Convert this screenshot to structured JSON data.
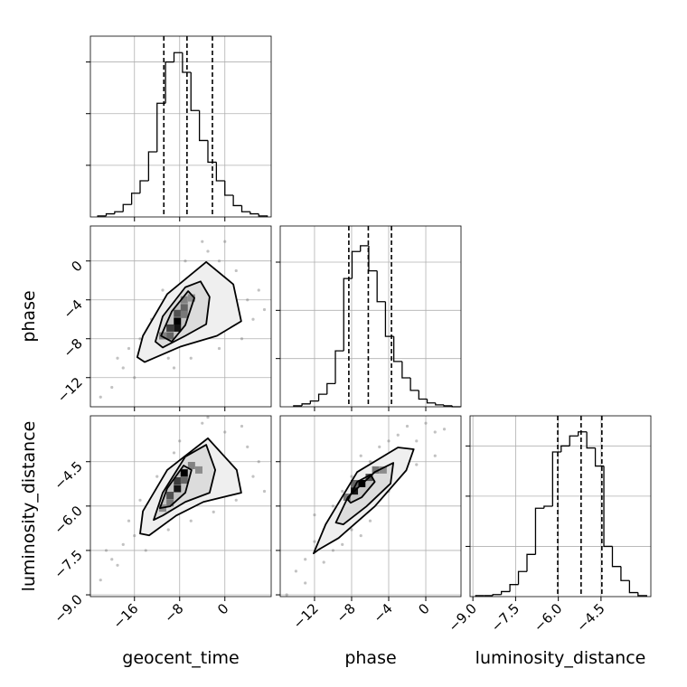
{
  "chart_data": [
    {
      "type": "histogram",
      "bins": [
        -22.5,
        -21,
        -19.5,
        -18,
        -16.5,
        -15,
        -13.5,
        -12,
        -10.5,
        -9,
        -7.5,
        -6,
        -4.5,
        -3,
        -1.5,
        0,
        1.5,
        3,
        4.5,
        6,
        7.5
      ],
      "values": [
        1,
        3,
        5,
        12,
        23,
        35,
        63,
        110,
        150,
        159,
        140,
        103,
        74,
        53,
        35,
        21,
        11,
        5,
        3,
        1
      ],
      "quantiles": [
        -10.8,
        -6.7,
        -2.2
      ],
      "xlim": [
        -23.8,
        8.2
      ],
      "xticks": [
        -16,
        -8,
        0
      ],
      "xtick_labels": false,
      "ylim": [
        0,
        175
      ],
      "yticks": [
        50,
        100,
        150
      ],
      "ytick_labels": false,
      "grid": true,
      "color": "#000000"
    },
    {
      "type": "scatter2d",
      "x": [
        -18,
        -16,
        -14,
        -12,
        -10,
        -20,
        -3,
        0,
        2,
        4,
        5,
        3,
        -1,
        -6,
        -9,
        -13,
        -11,
        -7,
        -4,
        1,
        -2,
        -5,
        -8,
        -15,
        -17,
        6,
        -1,
        -19,
        -22,
        7
      ],
      "y": [
        -11,
        -12,
        -10,
        -9,
        -10,
        -13,
        1,
        2,
        -1,
        -4,
        -6,
        -8,
        -9,
        -10,
        -11,
        -6,
        -3,
        0,
        2,
        -3,
        -5,
        -7,
        -8,
        -8,
        -9,
        -3,
        0,
        -10,
        -14,
        -5
      ],
      "contours": [
        {
          "x": [
            -15.5,
            -14.5,
            -10.2,
            -3.3,
            1.5,
            2.9,
            -1.4,
            -7.8,
            -14.2
          ],
          "y": [
            -9.9,
            -7.7,
            -3.4,
            -0.1,
            -2.4,
            -6.2,
            -7.7,
            -8.8,
            -10.4
          ]
        },
        {
          "x": [
            -12.3,
            -11,
            -7,
            -4.3,
            -2.7,
            -3.3,
            -7,
            -11
          ],
          "y": [
            -8.3,
            -5.7,
            -2.7,
            -2.1,
            -3.7,
            -6.5,
            -7.7,
            -8.9
          ]
        },
        {
          "x": [
            -11.3,
            -9.4,
            -6.5,
            -5.4,
            -7,
            -9.4
          ],
          "y": [
            -7.7,
            -5.2,
            -3.1,
            -3.8,
            -6.6,
            -8.3
          ]
        }
      ],
      "density": {
        "x": [
          -8.4,
          -8.4,
          -9.7,
          -8.4,
          -7.2,
          -7.2,
          -9.7,
          -5.9,
          -7.2,
          -11
        ],
        "y": [
          -6.2,
          -6.9,
          -6.9,
          -5.4,
          -4.8,
          -4,
          -7.7,
          -3.8,
          -5.5,
          -7.7
        ],
        "values": [
          1,
          0.9,
          0.7,
          0.6,
          0.5,
          0.35,
          0.5,
          0.3,
          0.4,
          0.35
        ]
      },
      "xlim": [
        -23.8,
        8.2
      ],
      "xticks": [
        -16,
        -8,
        0
      ],
      "xtick_labels": false,
      "ylim": [
        -15,
        3.6
      ],
      "yticks": [
        0,
        {
          "value": -4,
          "label": "−4"
        },
        {
          "value": -8,
          "label": "−8"
        },
        {
          "value": -12,
          "label": "−12"
        }
      ],
      "ytick_labels": true,
      "ylabel": "phase",
      "grid": true,
      "color": "#000000"
    },
    {
      "type": "histogram",
      "bins": [
        -14.25,
        -13.35,
        -12.45,
        -11.55,
        -10.65,
        -9.75,
        -8.85,
        -7.95,
        -7.05,
        -6.15,
        -5.25,
        -4.35,
        -3.45,
        -2.55,
        -1.65,
        -0.75,
        0.15,
        1.05,
        1.95,
        2.85,
        3.75
      ],
      "values": [
        1,
        3,
        6,
        13,
        24,
        58,
        133,
        161,
        167,
        141,
        109,
        73,
        47,
        30,
        17,
        8,
        4,
        2,
        1,
        0
      ],
      "quantiles": [
        -8.3,
        -6.2,
        -3.7
      ],
      "xlim": [
        -15.7,
        3.8
      ],
      "xticks": [
        -12,
        -8,
        -4,
        0
      ],
      "xtick_labels": false,
      "ylim": [
        0,
        187.5
      ],
      "yticks": [
        50,
        100,
        150
      ],
      "ytick_labels": false,
      "grid": true,
      "color": "#000000"
    },
    {
      "type": "scatter2d",
      "x": [
        -18,
        -20,
        -16,
        -22,
        -14,
        -10,
        -6,
        -2,
        2,
        5,
        4,
        0,
        -4,
        -8,
        -12,
        -15,
        -17,
        -1,
        -5,
        3,
        6,
        -11,
        -7,
        -19,
        -13,
        1,
        -3,
        7,
        -9,
        -21
      ],
      "y": [
        -7.3,
        -7.8,
        -7,
        -8.5,
        -7.5,
        -6.8,
        -6.5,
        -6.2,
        -5.8,
        -5,
        -4,
        -3.5,
        -3.2,
        -3.8,
        -5,
        -5.8,
        -6.5,
        -4.2,
        -5.3,
        -3.3,
        -4.5,
        -6.2,
        -6,
        -8,
        -6,
        -4.8,
        -3,
        -5.5,
        -4.2,
        -7.5
      ],
      "contours": [
        {
          "x": [
            -15,
            -14.5,
            -10.2,
            -3,
            2.1,
            2.9,
            -3.8,
            -8.6,
            -13.4
          ],
          "y": [
            -6.93,
            -6.17,
            -4.78,
            -3.71,
            -4.78,
            -5.55,
            -5.86,
            -6.32,
            -6.99
          ]
        },
        {
          "x": [
            -12.6,
            -11,
            -7,
            -3.3,
            -1.7,
            -2.7,
            -7,
            -11
          ],
          "y": [
            -6.47,
            -5.55,
            -4.33,
            -3.93,
            -4.78,
            -5.55,
            -5.86,
            -6.32
          ]
        },
        {
          "x": [
            -11.5,
            -10.2,
            -7.3,
            -5.9,
            -7,
            -9.7
          ],
          "y": [
            -6.07,
            -5.4,
            -4.63,
            -4.78,
            -5.55,
            -6.01
          ]
        }
      ],
      "density": {
        "x": [
          -7.2,
          -8.4,
          -8.4,
          -9.7,
          -7.2,
          -5.9,
          -9.7,
          -4.6,
          -11
        ],
        "y": [
          -4.88,
          -5.41,
          -5.15,
          -5.64,
          -5.12,
          -4.63,
          -5.89,
          -4.78,
          -6.07
        ],
        "values": [
          1,
          0.9,
          0.7,
          0.6,
          0.5,
          0.35,
          0.4,
          0.3,
          0.3
        ]
      },
      "xlim": [
        -23.8,
        8.2
      ],
      "xticks": [
        {
          "value": -16,
          "label": "−16"
        },
        {
          "value": -8,
          "label": "−8"
        },
        0
      ],
      "xtick_labels": true,
      "ylim": [
        -9.06,
        -2.95
      ],
      "yticks": [
        {
          "value": -4.5,
          "label": "−4.5"
        },
        {
          "value": -6,
          "label": "−6.0"
        },
        {
          "value": -7.5,
          "label": "−7.5"
        },
        {
          "value": -9,
          "label": "−9.0"
        }
      ],
      "ytick_labels": true,
      "xlabel": "geocent_time",
      "ylabel": "luminosity_distance",
      "grid": true,
      "color": "#000000"
    },
    {
      "type": "scatter2d",
      "x": [
        -14,
        -13,
        -12,
        -11,
        -10,
        -9,
        -8,
        -7,
        -6,
        -5,
        -4,
        -3,
        -2,
        -1,
        0,
        1,
        2,
        -12,
        -10,
        -13,
        -15,
        -8,
        -6,
        -3,
        -1,
        -11,
        -9,
        -4,
        -7,
        1
      ],
      "y": [
        -8.2,
        -7.8,
        -7.2,
        -7.9,
        -6,
        -7.3,
        -6.8,
        -4.3,
        -6.5,
        -4,
        -5.5,
        -3.6,
        -3.3,
        -3.8,
        -3.2,
        -3.5,
        -3.4,
        -6.3,
        -7.5,
        -8.6,
        -9,
        -5,
        -4.5,
        -5,
        -4.6,
        -6.8,
        -5.5,
        -3.8,
        -7,
        -4.3
      ],
      "contours": [
        {
          "x": [
            -12.1,
            -10.8,
            -7.4,
            -3,
            -1.3,
            -2.1,
            -5.5,
            -9.4,
            -11.6
          ],
          "y": [
            -7.6,
            -6.62,
            -4.85,
            -4.02,
            -4.08,
            -4.79,
            -6.01,
            -7.08,
            -7.48
          ]
        },
        {
          "x": [
            -9.7,
            -8.4,
            -5.5,
            -3.5,
            -3.8,
            -6.4,
            -8.9
          ],
          "y": [
            -6.56,
            -5.7,
            -4.85,
            -4.54,
            -5.24,
            -6.01,
            -6.62
          ]
        },
        {
          "x": [
            -8.4,
            -7.4,
            -5.95,
            -5.5,
            -6.9,
            -8.1
          ],
          "y": [
            -5.79,
            -5.18,
            -4.94,
            -5.18,
            -5.7,
            -5.89
          ]
        }
      ],
      "density": {
        "x": [
          -6.9,
          -7.7,
          -6.1,
          -7.7,
          -5.4,
          -8.5,
          -4.6
        ],
        "y": [
          -5.24,
          -5.49,
          -5.03,
          -5.24,
          -4.78,
          -5.7,
          -4.78
        ],
        "values": [
          1,
          0.9,
          0.6,
          0.5,
          0.4,
          0.4,
          0.3
        ]
      },
      "xlim": [
        -15.7,
        3.8
      ],
      "xticks": [
        {
          "value": -12,
          "label": "−12"
        },
        {
          "value": -8,
          "label": "−8"
        },
        {
          "value": -4,
          "label": "−4"
        },
        0
      ],
      "xtick_labels": true,
      "ylim": [
        -9.06,
        -2.95
      ],
      "yticks": [
        -4.5,
        -6,
        -7.5,
        -9
      ],
      "ytick_labels": false,
      "xlabel": "phase",
      "grid": true,
      "color": "#000000"
    },
    {
      "type": "histogram",
      "bins": [
        -8.9,
        -8.6,
        -8.3,
        -8,
        -7.7,
        -7.4,
        -7.1,
        -6.8,
        -6.5,
        -6.2,
        -5.9,
        -5.6,
        -5.3,
        -5,
        -4.7,
        -4.4,
        -4.1,
        -3.8,
        -3.5,
        -3.2,
        -2.9
      ],
      "values": [
        1,
        1,
        2,
        5,
        12,
        25,
        42,
        88,
        90,
        144,
        150,
        160,
        164,
        148,
        130,
        50,
        30,
        16,
        4,
        1
      ],
      "quantiles": [
        -6.02,
        -5.2,
        -4.47
      ],
      "xlim": [
        -9.1,
        -2.75
      ],
      "xticks": [
        {
          "value": -9,
          "label": "−9.0"
        },
        {
          "value": -7.5,
          "label": "−7.5"
        },
        {
          "value": -6,
          "label": "−6.0"
        },
        {
          "value": -4.5,
          "label": "−4.5"
        }
      ],
      "xtick_labels": true,
      "ylim": [
        0,
        180
      ],
      "yticks": [
        50,
        100,
        150
      ],
      "ytick_labels": false,
      "xlabel": "luminosity_distance",
      "grid": true,
      "color": "#000000"
    }
  ]
}
